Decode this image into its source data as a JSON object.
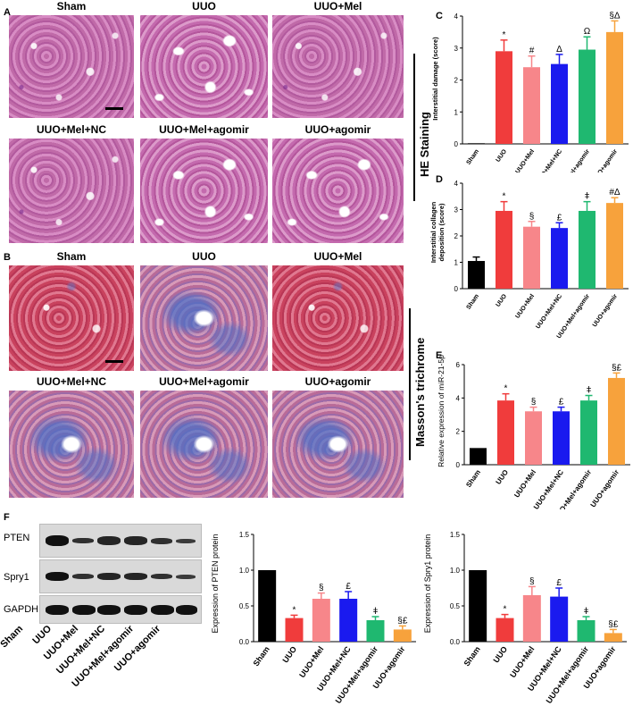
{
  "panels": {
    "A": "A",
    "B": "B",
    "C": "C",
    "D": "D",
    "E": "E",
    "F": "F"
  },
  "he_titles": [
    "Sham",
    "UUO",
    "UUO+Mel",
    "UUO+Mel+NC",
    "UUO+Mel+agomir",
    "UUO+agomir"
  ],
  "mt_titles": [
    "Sham",
    "UUO",
    "UUO+Mel",
    "UUO+Mel+NC",
    "UUO+Mel+agomir",
    "UUO+agomir"
  ],
  "he_side_label": "HE Staining",
  "mt_side_label": "Masson's trichrome",
  "blot": {
    "rows": [
      "PTEN",
      "Spry1",
      "GAPDH"
    ],
    "lanes": [
      "Sham",
      "UUO",
      "UUO+Mel",
      "UUO+Mel+NC",
      "UUO+Mel+agomir",
      "UUO+agomir"
    ]
  },
  "colors": {
    "sham": "#000000",
    "uuo": "#f03c3c",
    "mel": "#f7868a",
    "nc": "#1a1aef",
    "melago": "#1fb870",
    "ago": "#f7a23c"
  },
  "chart_data": [
    {
      "id": "C",
      "type": "bar",
      "categories": [
        "Sham",
        "UUO",
        "UUO+Mel",
        "UUO+Mel+NC",
        "UUO+Mel+agomir",
        "UUO+agomir"
      ],
      "values": [
        0.02,
        2.9,
        2.4,
        2.5,
        2.95,
        3.5
      ],
      "errors": [
        0,
        0.35,
        0.35,
        0.3,
        0.4,
        0.35
      ],
      "markers": [
        "",
        "*",
        "#",
        "Δ",
        "Ω",
        "§Δ"
      ],
      "ylabel": "Interstitial damage (score)",
      "ylim": [
        0,
        4
      ],
      "yticks": [
        0,
        1,
        2,
        3,
        4
      ]
    },
    {
      "id": "D",
      "type": "bar",
      "categories": [
        "Sham",
        "UUO",
        "UUO+Mel",
        "UUO+Mel+NC",
        "UUO+Mel+agomir",
        "UUO+agomir"
      ],
      "values": [
        1.05,
        2.95,
        2.35,
        2.3,
        2.95,
        3.25
      ],
      "errors": [
        0.15,
        0.35,
        0.2,
        0.2,
        0.35,
        0.2
      ],
      "markers": [
        "",
        "*",
        "§",
        "£",
        "ǂ",
        "#Δ"
      ],
      "ylabel": [
        "Interstitial collagen",
        "deposition (score)"
      ],
      "ylim": [
        0,
        4
      ],
      "yticks": [
        0,
        1,
        2,
        3,
        4
      ]
    },
    {
      "id": "E",
      "type": "bar",
      "categories": [
        "Sham",
        "UUO",
        "UUO+Mel",
        "UUO+Mel+NC",
        "UUO+Mel+agomir",
        "UUO+agomir"
      ],
      "values": [
        1.0,
        3.85,
        3.2,
        3.2,
        3.85,
        5.2
      ],
      "errors": [
        0,
        0.4,
        0.25,
        0.25,
        0.3,
        0.3
      ],
      "markers": [
        "",
        "*",
        "§",
        "£",
        "ǂ",
        "§£"
      ],
      "ylabel": "Relative expression of miR-21-5p",
      "ylim": [
        0,
        6
      ],
      "yticks": [
        0,
        2,
        4,
        6
      ]
    },
    {
      "id": "F1",
      "type": "bar",
      "categories": [
        "Sham",
        "UUO",
        "UUO+Mel",
        "UUO+Mel+NC",
        "UUO+Mel+agomir",
        "UUO+agomir"
      ],
      "values": [
        1.0,
        0.33,
        0.6,
        0.6,
        0.3,
        0.17
      ],
      "errors": [
        0,
        0.04,
        0.08,
        0.1,
        0.05,
        0.05
      ],
      "markers": [
        "",
        "*",
        "§",
        "£",
        "ǂ",
        "§£"
      ],
      "ylabel": "Expression of PTEN protein",
      "ylim": [
        0,
        1.5
      ],
      "yticks": [
        "0.0",
        "0.5",
        "1.0",
        "1.5"
      ]
    },
    {
      "id": "F2",
      "type": "bar",
      "categories": [
        "Sham",
        "UUO",
        "UUO+Mel",
        "UUO+Mel+NC",
        "UUO+Mel+agomir",
        "UUO+agomir"
      ],
      "values": [
        1.0,
        0.33,
        0.65,
        0.63,
        0.3,
        0.12
      ],
      "errors": [
        0,
        0.05,
        0.12,
        0.12,
        0.05,
        0.05
      ],
      "markers": [
        "",
        "*",
        "§",
        "£",
        "ǂ",
        "§£"
      ],
      "ylabel": "Expression of Spry1 protein",
      "ylim": [
        0,
        1.5
      ],
      "yticks": [
        "0.0",
        "0.5",
        "1.0",
        "1.5"
      ]
    }
  ]
}
